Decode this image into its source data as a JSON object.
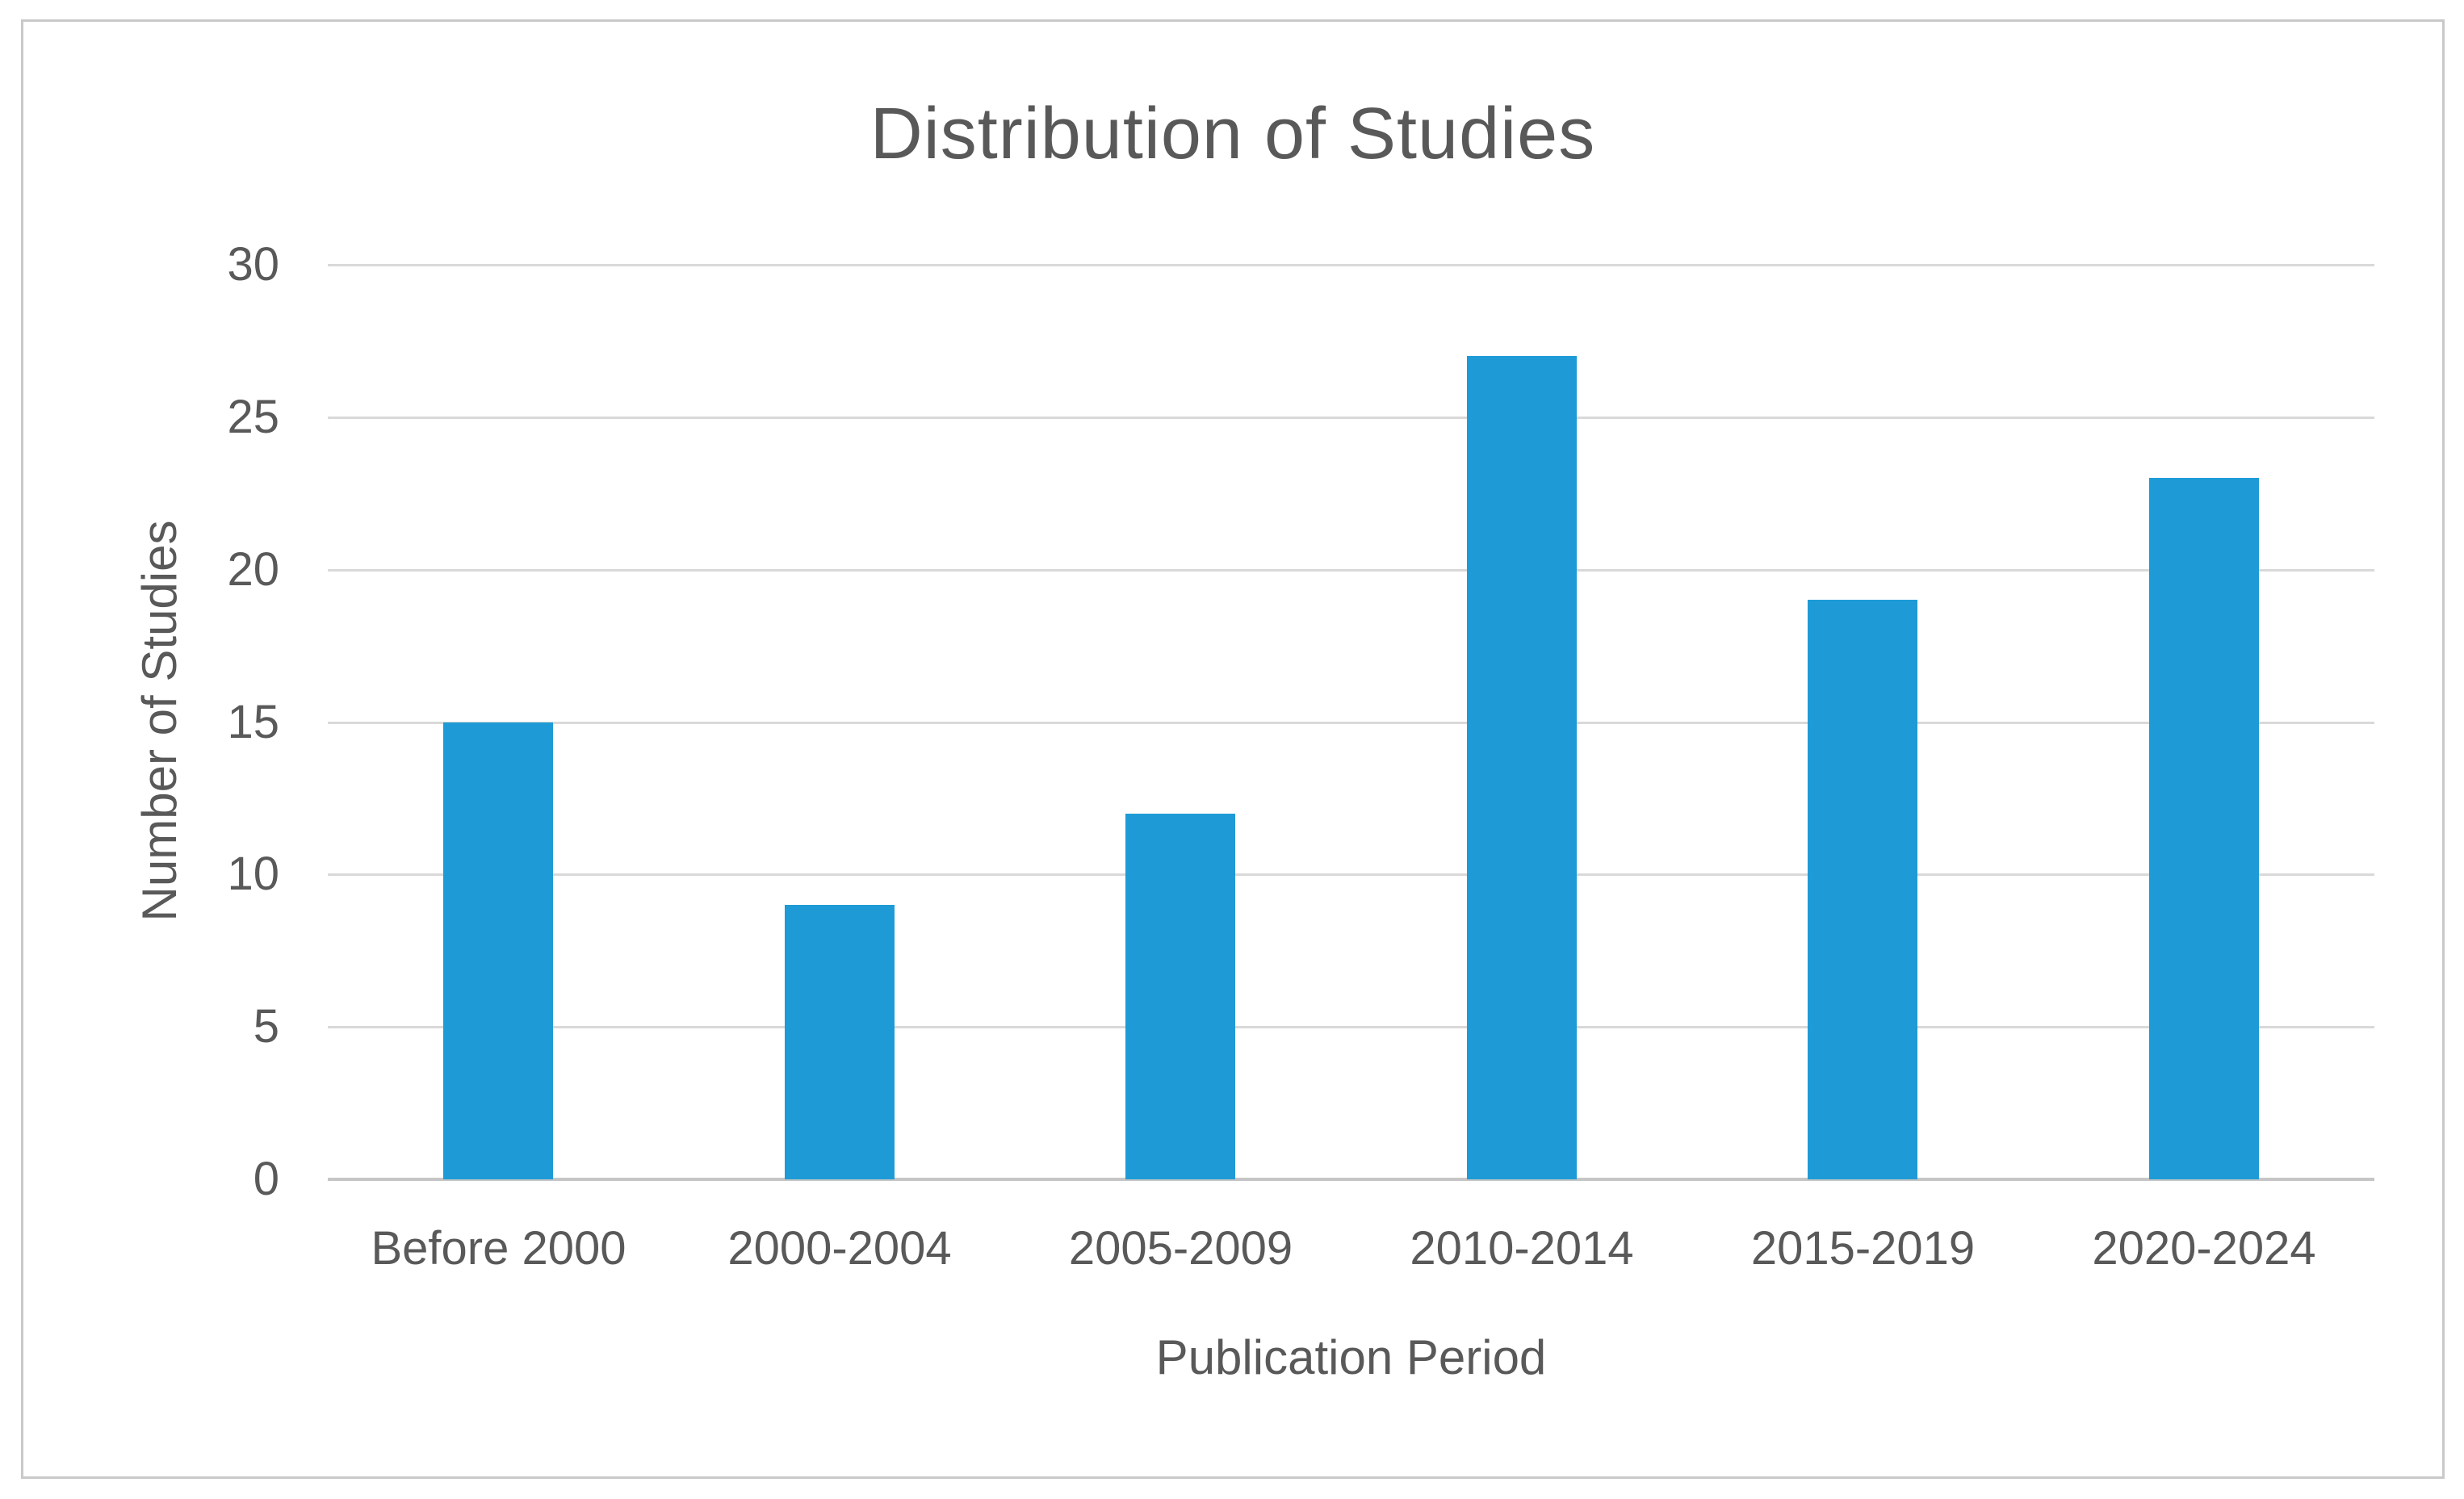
{
  "chart_data": {
    "type": "bar",
    "title": "Distribution of Studies",
    "xlabel": "Publication Period",
    "ylabel": "Number of Studies",
    "categories": [
      "Before 2000",
      "2000-2004",
      "2005-2009",
      "2010-2014",
      "2015-2019",
      "2020-2024"
    ],
    "values": [
      15,
      9,
      12,
      27,
      19,
      23
    ],
    "yticks": [
      0,
      5,
      10,
      15,
      20,
      25,
      30
    ],
    "ylim": [
      0,
      30
    ],
    "grid": "horizontal",
    "legend_position": "none",
    "colors": {
      "bar": "#1E9BD6",
      "text": "#595959",
      "gridline": "#D9D9D9",
      "axis_line": "#C6C6C6",
      "figure_border": "#C9C9C9",
      "background": "#FFFFFF"
    }
  }
}
